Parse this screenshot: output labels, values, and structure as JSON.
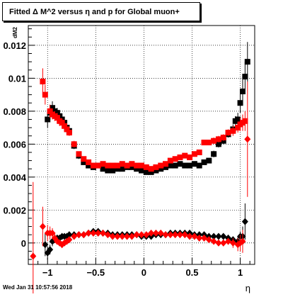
{
  "title": "Fitted Δ M^2 versus η and p for Global muon+",
  "footer": "Wed Jan 31 10:57:56 2018",
  "chart_data": {
    "type": "scatter",
    "title": "Fitted Δ M^2 versus η and p for Global muon+",
    "xlabel": "η",
    "ylabel": "dM2",
    "xlim": [
      -1.2,
      1.15
    ],
    "ylim": [
      -0.0013,
      0.0132
    ],
    "grid": true,
    "xticks": [
      -1,
      -0.5,
      0,
      0.5,
      1
    ],
    "xtick_labels": [
      "−1",
      "−0.5",
      "0",
      "0.5",
      "1"
    ],
    "yticks": [
      0,
      0.002,
      0.004,
      0.006,
      0.008,
      0.01,
      0.012
    ],
    "ytick_labels": [
      "0",
      "0.002",
      "0.004",
      "0.006",
      "0.008",
      "0.01",
      "0.012"
    ],
    "series": [
      {
        "marker": "square",
        "color": "#000000",
        "x": [
          -1.0,
          -0.975,
          -0.95,
          -0.925,
          -0.9,
          -0.875,
          -0.85,
          -0.825,
          -0.8,
          -0.775,
          -0.725,
          -0.675,
          -0.625,
          -0.575,
          -0.525,
          -0.475,
          -0.425,
          -0.375,
          -0.325,
          -0.275,
          -0.225,
          -0.175,
          -0.125,
          -0.075,
          -0.025,
          0.025,
          0.075,
          0.125,
          0.175,
          0.225,
          0.275,
          0.325,
          0.375,
          0.425,
          0.475,
          0.525,
          0.575,
          0.625,
          0.675,
          0.725,
          0.775,
          0.825,
          0.875,
          0.925,
          0.95,
          0.975,
          1.0,
          1.025,
          1.05,
          1.075
        ],
        "y": [
          0.0075,
          0.0079,
          0.0082,
          0.008,
          0.0079,
          0.0077,
          0.0075,
          0.0073,
          0.007,
          0.0068,
          0.0059,
          0.0053,
          0.0049,
          0.0047,
          0.0046,
          0.0047,
          0.0045,
          0.0044,
          0.0044,
          0.0045,
          0.0045,
          0.0046,
          0.0046,
          0.0045,
          0.0044,
          0.0043,
          0.0043,
          0.0044,
          0.0045,
          0.0046,
          0.0047,
          0.0047,
          0.0048,
          0.0047,
          0.0047,
          0.0048,
          0.0047,
          0.0049,
          0.005,
          0.0054,
          0.006,
          0.0062,
          0.0066,
          0.0069,
          0.0074,
          0.0075,
          0.0085,
          0.0092,
          0.0101,
          0.011
        ],
        "yerr": [
          0.0005,
          0.0004,
          0.0004,
          0.0003,
          0.0003,
          0.0003,
          0.0003,
          0.0002,
          0.0002,
          0.0002,
          0.0002,
          0.0002,
          0.0001,
          0.0001,
          0.0001,
          0.0001,
          0.0001,
          0.0001,
          0.0001,
          0.0001,
          0.0001,
          0.0001,
          0.0001,
          0.0001,
          0.0001,
          0.0001,
          0.0001,
          0.0001,
          0.0001,
          0.0001,
          0.0001,
          0.0001,
          0.0001,
          0.0001,
          0.0001,
          0.0001,
          0.0001,
          0.0001,
          0.0001,
          0.0002,
          0.0002,
          0.0002,
          0.0002,
          0.0003,
          0.0003,
          0.0004,
          0.0006,
          0.0008,
          0.0009,
          0.0012
        ]
      },
      {
        "marker": "square",
        "color": "#ff0000",
        "x": [
          -1.05,
          -1.025,
          -0.975,
          -0.95,
          -0.925,
          -0.9,
          -0.875,
          -0.85,
          -0.825,
          -0.8,
          -0.775,
          -0.725,
          -0.675,
          -0.625,
          -0.575,
          -0.525,
          -0.475,
          -0.425,
          -0.375,
          -0.325,
          -0.275,
          -0.225,
          -0.175,
          -0.125,
          -0.075,
          -0.025,
          0.025,
          0.075,
          0.125,
          0.175,
          0.225,
          0.275,
          0.325,
          0.375,
          0.425,
          0.475,
          0.525,
          0.575,
          0.625,
          0.675,
          0.725,
          0.775,
          0.825,
          0.875,
          0.925,
          0.975,
          1.0,
          1.025,
          1.05
        ],
        "y": [
          0.0098,
          0.009,
          0.008,
          0.0078,
          0.0077,
          0.0076,
          0.0074,
          0.0073,
          0.0071,
          0.0069,
          0.0067,
          0.006,
          0.0054,
          0.0051,
          0.0049,
          0.0047,
          0.0047,
          0.0048,
          0.0047,
          0.0047,
          0.0047,
          0.0048,
          0.0047,
          0.0048,
          0.0047,
          0.0047,
          0.0046,
          0.0045,
          0.0046,
          0.0047,
          0.0048,
          0.005,
          0.0051,
          0.0052,
          0.0053,
          0.0052,
          0.0054,
          0.0055,
          0.0061,
          0.0061,
          0.0062,
          0.0063,
          0.0064,
          0.0067,
          0.0068,
          0.007,
          0.0072,
          0.0073,
          0.0074
        ],
        "yerr": [
          0.0008,
          0.0006,
          0.0004,
          0.0003,
          0.0003,
          0.0003,
          0.0003,
          0.0002,
          0.0002,
          0.0002,
          0.0002,
          0.0002,
          0.0001,
          0.0001,
          0.0001,
          0.0001,
          0.0001,
          0.0001,
          0.0001,
          0.0001,
          0.0001,
          0.0001,
          0.0001,
          0.0001,
          0.0001,
          0.0001,
          0.0001,
          0.0001,
          0.0001,
          0.0001,
          0.0001,
          0.0001,
          0.0001,
          0.0001,
          0.0001,
          0.0001,
          0.0001,
          0.0001,
          0.0001,
          0.0001,
          0.0002,
          0.0002,
          0.0002,
          0.0002,
          0.0003,
          0.0003,
          0.0004,
          0.0005,
          0.0006
        ]
      },
      {
        "marker": "diamond",
        "color": "#000000",
        "x": [
          -1.025,
          -1.0,
          -0.975,
          -0.95,
          -0.925,
          -0.9,
          -0.875,
          -0.85,
          -0.825,
          -0.8,
          -0.775,
          -0.725,
          -0.675,
          -0.625,
          -0.575,
          -0.525,
          -0.475,
          -0.425,
          -0.375,
          -0.325,
          -0.275,
          -0.225,
          -0.175,
          -0.125,
          -0.075,
          -0.025,
          0.025,
          0.075,
          0.125,
          0.175,
          0.225,
          0.275,
          0.325,
          0.375,
          0.425,
          0.475,
          0.525,
          0.575,
          0.625,
          0.675,
          0.725,
          0.775,
          0.825,
          0.875,
          0.925,
          0.975,
          1.0,
          1.025,
          1.05
        ],
        "y": [
          -0.0001,
          -0.0006,
          -0.0004,
          0.0001,
          0.0002,
          0.0003,
          0.0003,
          0.0004,
          0.0004,
          0.0004,
          0.0005,
          0.0005,
          0.0005,
          0.0005,
          0.0006,
          0.0007,
          0.0007,
          0.0006,
          0.0006,
          0.0005,
          0.0005,
          0.0005,
          0.0005,
          0.0005,
          0.0005,
          0.0004,
          0.0004,
          0.0004,
          0.0005,
          0.0005,
          0.0005,
          0.0006,
          0.0006,
          0.0006,
          0.0006,
          0.0006,
          0.0005,
          0.0005,
          0.0005,
          0.0004,
          0.0004,
          0.0004,
          0.0004,
          0.0003,
          0.0002,
          0.0001,
          0.0004,
          0.0004,
          0.0013
        ],
        "yerr": [
          0.0007,
          0.0004,
          0.0003,
          0.0003,
          0.0002,
          0.0002,
          0.0002,
          0.0001,
          0.0001,
          0.0001,
          0.0001,
          0.0001,
          0.0001,
          0.0001,
          0.0001,
          0.0001,
          0.0001,
          0.0001,
          0.0001,
          0.0001,
          0.0001,
          0.0001,
          0.0001,
          0.0001,
          0.0001,
          0.0001,
          0.0001,
          0.0001,
          0.0001,
          0.0001,
          0.0001,
          0.0001,
          0.0001,
          0.0001,
          0.0001,
          0.0001,
          0.0001,
          0.0001,
          0.0001,
          0.0001,
          0.0001,
          0.0001,
          0.0001,
          0.0002,
          0.0002,
          0.0003,
          0.0003,
          0.0006,
          0.0011
        ]
      },
      {
        "marker": "diamond",
        "color": "#ff0000",
        "x": [
          -1.15,
          -1.05,
          -1.0,
          -0.975,
          -0.95,
          -0.925,
          -0.9,
          -0.875,
          -0.85,
          -0.825,
          -0.8,
          -0.775,
          -0.725,
          -0.675,
          -0.625,
          -0.575,
          -0.525,
          -0.475,
          -0.425,
          -0.375,
          -0.325,
          -0.275,
          -0.225,
          -0.175,
          -0.125,
          -0.075,
          -0.025,
          0.025,
          0.075,
          0.125,
          0.175,
          0.225,
          0.275,
          0.325,
          0.375,
          0.425,
          0.475,
          0.525,
          0.575,
          0.625,
          0.675,
          0.725,
          0.775,
          0.825,
          0.875,
          0.925,
          0.975,
          1.0,
          1.025,
          1.075
        ],
        "y": [
          -0.0008,
          0.001,
          0.0006,
          0.0006,
          0.0006,
          0.0003,
          0.0001,
          0.0,
          -0.0001,
          0.0,
          0.0001,
          0.0002,
          0.0004,
          0.0005,
          0.0005,
          0.0006,
          0.0006,
          0.0006,
          0.0006,
          0.0005,
          0.0004,
          0.0004,
          0.0004,
          0.0004,
          0.0004,
          0.0005,
          0.0005,
          0.0005,
          0.0006,
          0.0006,
          0.0006,
          0.0005,
          0.0005,
          0.0005,
          0.0005,
          0.0005,
          0.0004,
          0.0004,
          0.0003,
          0.0003,
          0.0002,
          0.0001,
          0.0,
          0.0,
          0.0001,
          0.0,
          -0.0001,
          0.0,
          0.0001,
          0.0063
        ],
        "yerr": [
          0.0045,
          0.0012,
          0.0005,
          0.0004,
          0.0003,
          0.0003,
          0.0002,
          0.0002,
          0.0002,
          0.0001,
          0.0001,
          0.0001,
          0.0001,
          0.0001,
          0.0001,
          0.0001,
          0.0001,
          0.0001,
          0.0001,
          0.0001,
          0.0001,
          0.0001,
          0.0001,
          0.0001,
          0.0001,
          0.0001,
          0.0001,
          0.0001,
          0.0001,
          0.0001,
          0.0001,
          0.0001,
          0.0001,
          0.0001,
          0.0001,
          0.0001,
          0.0001,
          0.0001,
          0.0001,
          0.0001,
          0.0001,
          0.0001,
          0.0001,
          0.0002,
          0.0002,
          0.0003,
          0.0004,
          0.0005,
          0.0007,
          0.0035
        ]
      }
    ]
  }
}
